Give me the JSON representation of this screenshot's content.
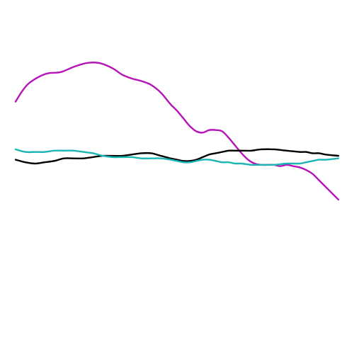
{
  "chart_data": {
    "type": "line",
    "title": "",
    "xlabel": "",
    "ylabel": "",
    "axes_visible": false,
    "grid": false,
    "legend": "none",
    "xlim": [
      0,
      1
    ],
    "ylim": [
      -1,
      1
    ],
    "series": [
      {
        "color": "#b614b8",
        "x": [
          0,
          0.02,
          0.04,
          0.07,
          0.1,
          0.14,
          0.18,
          0.22,
          0.26,
          0.3,
          0.33,
          0.36,
          0.39,
          0.42,
          0.45,
          0.48,
          0.5,
          0.52,
          0.54,
          0.56,
          0.58,
          0.6,
          0.62,
          0.64,
          0.66,
          0.68,
          0.7,
          0.72,
          0.74,
          0.76,
          0.78,
          0.8,
          0.82,
          0.84,
          0.86,
          0.88,
          0.9,
          0.92,
          0.94,
          0.96,
          0.98,
          1.0
        ],
        "y": [
          0.48,
          0.56,
          0.62,
          0.67,
          0.7,
          0.71,
          0.75,
          0.78,
          0.78,
          0.74,
          0.69,
          0.66,
          0.64,
          0.61,
          0.55,
          0.46,
          0.41,
          0.35,
          0.29,
          0.25,
          0.24,
          0.26,
          0.26,
          0.25,
          0.2,
          0.14,
          0.08,
          0.03,
          0.0,
          -0.01,
          -0.01,
          -0.01,
          -0.02,
          -0.01,
          -0.02,
          -0.03,
          -0.05,
          -0.08,
          -0.13,
          -0.18,
          -0.23,
          -0.28
        ]
      },
      {
        "color": "#000000",
        "x": [
          0,
          0.03,
          0.06,
          0.09,
          0.12,
          0.15,
          0.18,
          0.21,
          0.24,
          0.27,
          0.3,
          0.33,
          0.36,
          0.39,
          0.42,
          0.45,
          0.48,
          0.5,
          0.52,
          0.54,
          0.56,
          0.58,
          0.6,
          0.62,
          0.64,
          0.66,
          0.68,
          0.7,
          0.73,
          0.76,
          0.8,
          0.84,
          0.88,
          0.9,
          0.92,
          0.94,
          0.96,
          1.0
        ],
        "y": [
          0.03,
          0.01,
          0.0,
          0.01,
          0.02,
          0.04,
          0.04,
          0.04,
          0.05,
          0.06,
          0.06,
          0.06,
          0.07,
          0.08,
          0.08,
          0.06,
          0.04,
          0.03,
          0.02,
          0.02,
          0.03,
          0.05,
          0.07,
          0.08,
          0.09,
          0.1,
          0.1,
          0.1,
          0.1,
          0.11,
          0.11,
          0.1,
          0.09,
          0.09,
          0.08,
          0.08,
          0.07,
          0.06
        ]
      },
      {
        "color": "#1bb6b4",
        "x": [
          0,
          0.03,
          0.06,
          0.09,
          0.12,
          0.15,
          0.18,
          0.21,
          0.24,
          0.27,
          0.3,
          0.33,
          0.36,
          0.39,
          0.42,
          0.45,
          0.48,
          0.5,
          0.52,
          0.54,
          0.56,
          0.58,
          0.6,
          0.62,
          0.64,
          0.66,
          0.68,
          0.7,
          0.73,
          0.76,
          0.8,
          0.84,
          0.88,
          0.9,
          0.92,
          0.94,
          0.96,
          1.0
        ],
        "y": [
          0.11,
          0.09,
          0.09,
          0.09,
          0.1,
          0.1,
          0.1,
          0.09,
          0.08,
          0.06,
          0.05,
          0.05,
          0.05,
          0.04,
          0.04,
          0.04,
          0.03,
          0.02,
          0.01,
          0.01,
          0.02,
          0.03,
          0.03,
          0.02,
          0.01,
          0.01,
          0.0,
          0.0,
          -0.01,
          -0.01,
          -0.01,
          0.0,
          0.0,
          0.01,
          0.02,
          0.03,
          0.03,
          0.04
        ]
      }
    ]
  }
}
